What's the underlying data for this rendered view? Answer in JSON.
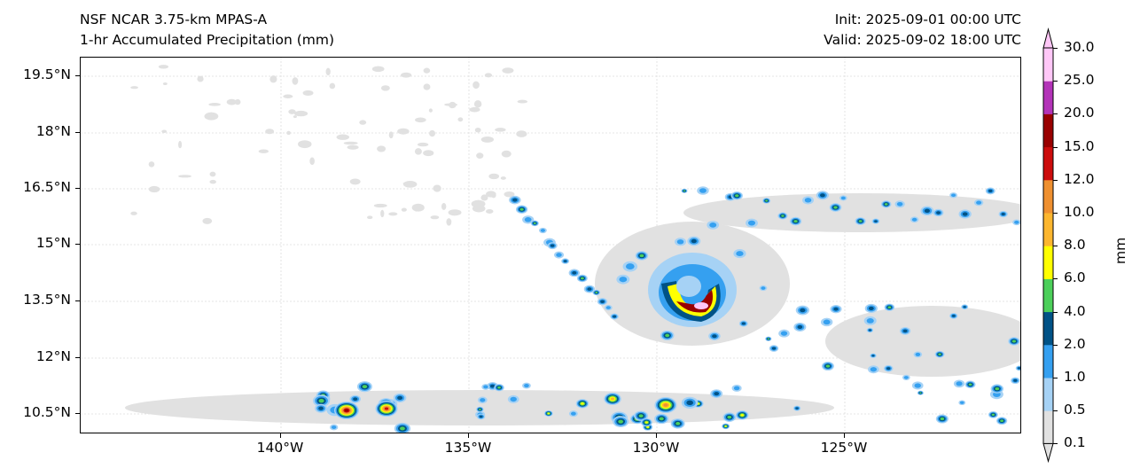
{
  "header": {
    "model": "NSF NCAR 3.75-km MPAS-A",
    "field": "1-hr Accumulated Precipitation (mm)",
    "init": "Init: 2025-09-01 00:00 UTC",
    "valid": "Valid: 2025-09-02 18:00 UTC"
  },
  "map": {
    "lon_ticks": [
      "140°W",
      "135°W",
      "130°W",
      "125°W"
    ],
    "lat_ticks": [
      "19.5°N",
      "18°N",
      "16.5°N",
      "15°N",
      "13.5°N",
      "12°N",
      "10.5°N"
    ]
  },
  "colorbar": {
    "label": "mm",
    "levels": [
      "0.1",
      "0.5",
      "1.0",
      "2.0",
      "4.0",
      "6.0",
      "8.0",
      "10.0",
      "12.0",
      "15.0",
      "20.0",
      "25.0",
      "30.0"
    ],
    "colors": [
      "#e1e1e1",
      "#a6d2f5",
      "#35a0f0",
      "#005286",
      "#4ccf5a",
      "#ffff00",
      "#fcb62f",
      "#ef9030",
      "#cc0c0c",
      "#990000",
      "#b333b8",
      "#ffc7f7"
    ]
  }
}
